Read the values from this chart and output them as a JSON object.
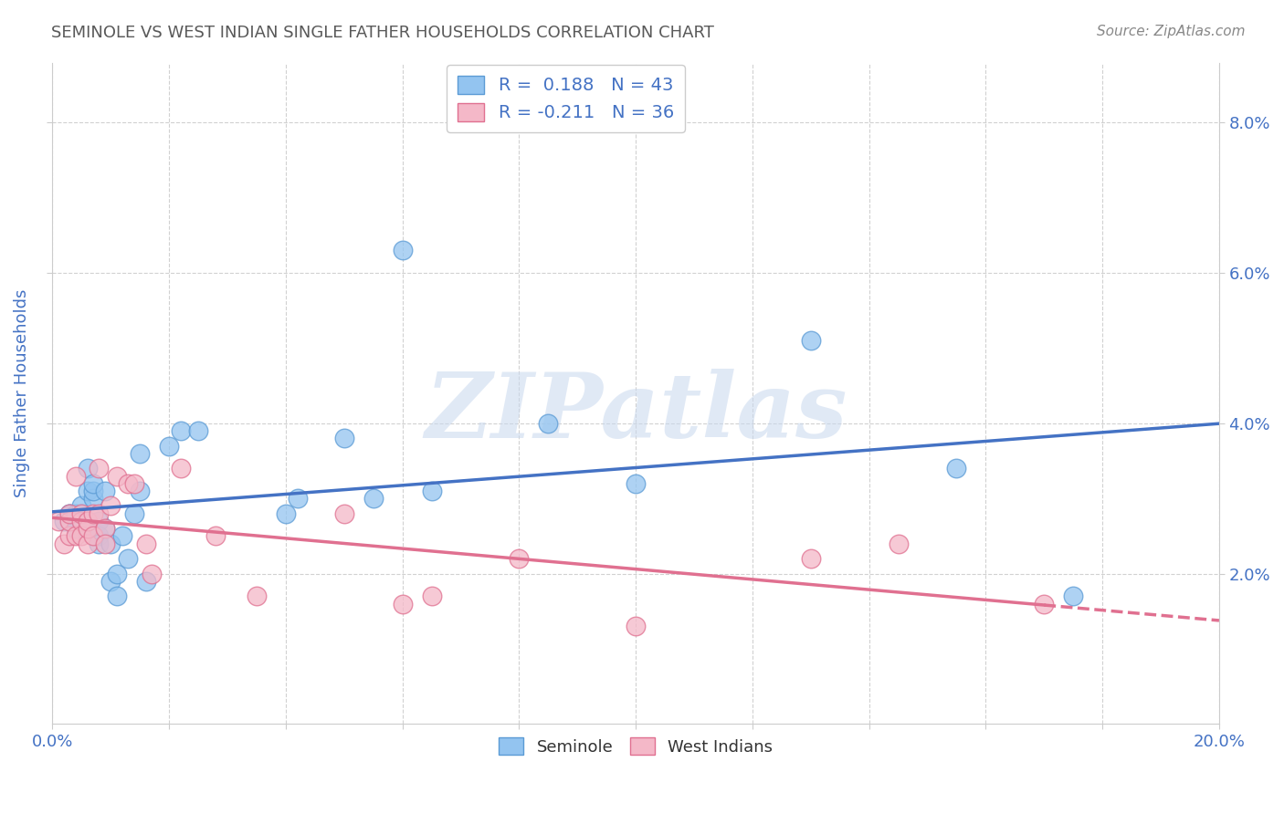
{
  "title": "SEMINOLE VS WEST INDIAN SINGLE FATHER HOUSEHOLDS CORRELATION CHART",
  "source": "Source: ZipAtlas.com",
  "ylabel": "Single Father Households",
  "watermark": "ZIPatlas",
  "xlim": [
    0.0,
    0.2
  ],
  "ylim": [
    0.0,
    0.088
  ],
  "seminole_color": "#93c4f0",
  "seminole_edge_color": "#5b9bd5",
  "west_indian_color": "#f4b8c8",
  "west_indian_edge_color": "#e07090",
  "seminole_line_color": "#4472c4",
  "west_indian_line_color": "#e07090",
  "title_color": "#595959",
  "axis_color": "#4472c4",
  "source_color": "#888888",
  "legend_text_color": "#4472c4",
  "grid_color": "#cccccc",
  "R_seminole": 0.188,
  "N_seminole": 43,
  "R_west_indian": -0.211,
  "N_west_indian": 36,
  "seminole_x": [
    0.002,
    0.003,
    0.003,
    0.004,
    0.004,
    0.005,
    0.005,
    0.005,
    0.006,
    0.006,
    0.006,
    0.007,
    0.007,
    0.007,
    0.008,
    0.008,
    0.008,
    0.009,
    0.009,
    0.01,
    0.01,
    0.011,
    0.011,
    0.012,
    0.013,
    0.014,
    0.015,
    0.015,
    0.016,
    0.02,
    0.022,
    0.025,
    0.04,
    0.042,
    0.05,
    0.055,
    0.06,
    0.065,
    0.085,
    0.1,
    0.13,
    0.155,
    0.175
  ],
  "seminole_y": [
    0.027,
    0.028,
    0.028,
    0.028,
    0.026,
    0.027,
    0.028,
    0.029,
    0.031,
    0.034,
    0.026,
    0.03,
    0.031,
    0.032,
    0.027,
    0.025,
    0.024,
    0.031,
    0.026,
    0.019,
    0.024,
    0.02,
    0.017,
    0.025,
    0.022,
    0.028,
    0.036,
    0.031,
    0.019,
    0.037,
    0.039,
    0.039,
    0.028,
    0.03,
    0.038,
    0.03,
    0.063,
    0.031,
    0.04,
    0.032,
    0.051,
    0.034,
    0.017
  ],
  "west_indian_x": [
    0.001,
    0.002,
    0.003,
    0.003,
    0.003,
    0.004,
    0.004,
    0.005,
    0.005,
    0.005,
    0.006,
    0.006,
    0.006,
    0.007,
    0.007,
    0.008,
    0.008,
    0.009,
    0.009,
    0.01,
    0.011,
    0.013,
    0.014,
    0.016,
    0.017,
    0.022,
    0.028,
    0.035,
    0.05,
    0.06,
    0.065,
    0.08,
    0.1,
    0.13,
    0.145,
    0.17
  ],
  "west_indian_y": [
    0.027,
    0.024,
    0.025,
    0.027,
    0.028,
    0.025,
    0.033,
    0.027,
    0.028,
    0.025,
    0.024,
    0.026,
    0.027,
    0.025,
    0.028,
    0.034,
    0.028,
    0.026,
    0.024,
    0.029,
    0.033,
    0.032,
    0.032,
    0.024,
    0.02,
    0.034,
    0.025,
    0.017,
    0.028,
    0.016,
    0.017,
    0.022,
    0.013,
    0.022,
    0.024,
    0.016
  ]
}
